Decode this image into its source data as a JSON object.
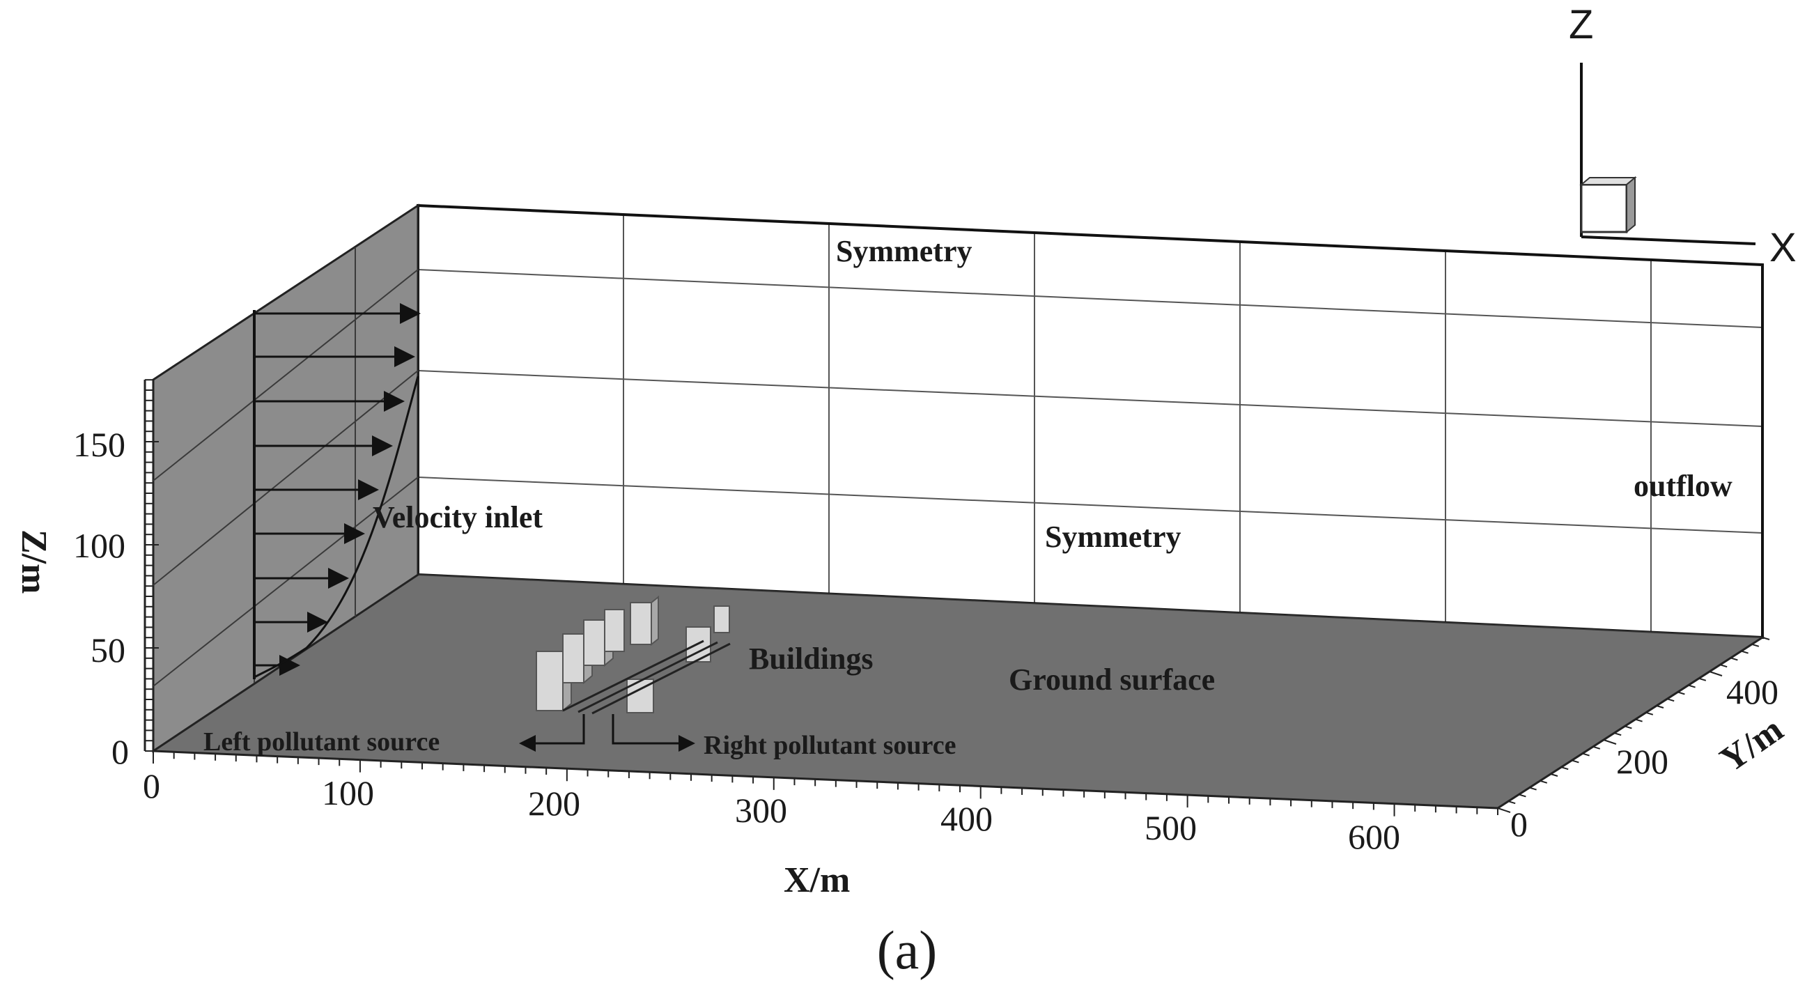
{
  "labels": {
    "symmetry_top": "Symmetry",
    "symmetry_side": "Symmetry",
    "velocity_inlet": "Velocity inlet",
    "outflow": "outflow",
    "buildings": "Buildings",
    "ground_surface": "Ground surface",
    "left_source": "Left pollutant source",
    "right_source": "Right pollutant source",
    "caption": "(a)"
  },
  "axes": {
    "x": {
      "name": "X/m",
      "ticks": [
        "0",
        "100",
        "200",
        "300",
        "400",
        "500",
        "600"
      ]
    },
    "y": {
      "name": "Y/m",
      "ticks": [
        "0",
        "200",
        "400"
      ]
    },
    "z": {
      "name": "Z/m",
      "ticks": [
        "0",
        "50",
        "100",
        "150"
      ]
    }
  },
  "triad": {
    "z": "Z",
    "x": "X"
  },
  "colors": {
    "ground": "#707070",
    "inlet_wall": "#8c8c8c",
    "buildings": "#d8d8d8"
  }
}
